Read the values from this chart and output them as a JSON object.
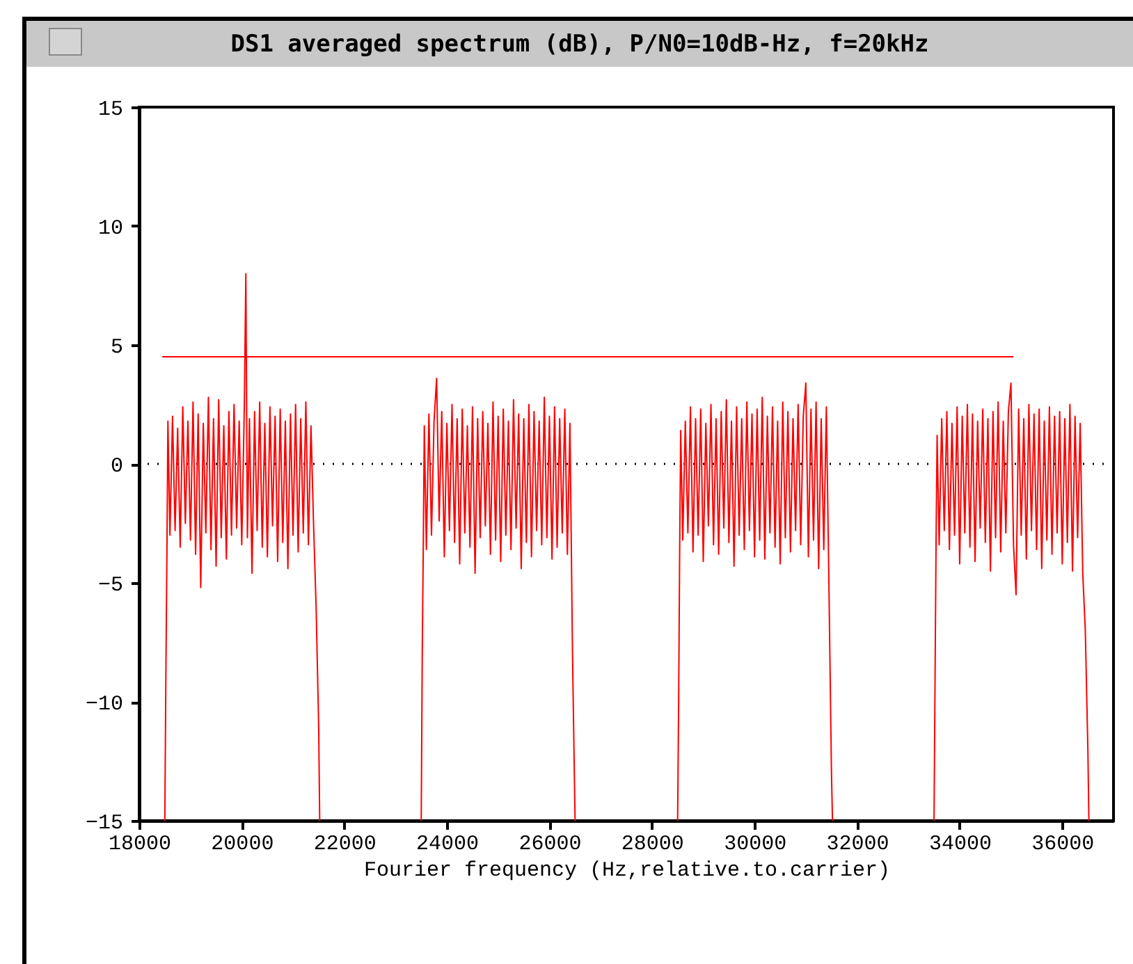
{
  "chart_data": {
    "type": "line",
    "title": "DS1 averaged spectrum (dB), P/N0=10dB-Hz, f=20kHz",
    "xlabel": "Fourier  frequency (Hz,relative.to.carrier)",
    "xlim": [
      18000,
      37000
    ],
    "xticks": [
      18000,
      20000,
      22000,
      24000,
      26000,
      28000,
      30000,
      32000,
      34000,
      36000
    ],
    "ylim": [
      -15,
      15
    ],
    "yticks": [
      -15,
      -10,
      -5,
      0,
      5,
      10,
      15
    ],
    "grid": false,
    "marker": "none",
    "line_style": "solid",
    "ref_lines": [
      {
        "axis": "y",
        "value": 0,
        "color": "#000000",
        "line_style": "dotted"
      }
    ],
    "series": [
      {
        "color": "#ff0000",
        "x": [
          18500,
          18520,
          18540,
          18560,
          18600,
          18650,
          18700,
          18750,
          18800,
          18850,
          18900,
          18950,
          19000,
          19050,
          19100,
          19150,
          19200,
          19250,
          19300,
          19350,
          19400,
          19450,
          19500,
          19550,
          19600,
          19650,
          19700,
          19750,
          19800,
          19850,
          19900,
          19950,
          20000,
          20050,
          20080,
          20110,
          20150,
          20200,
          20250,
          20300,
          20350,
          20400,
          20450,
          20500,
          20550,
          20600,
          20650,
          20700,
          20750,
          20800,
          20850,
          20900,
          20950,
          21000,
          21050,
          21100,
          21150,
          21200,
          21250,
          21300,
          21350,
          21400,
          21450,
          21500,
          21520
        ],
        "values": [
          -15,
          -9,
          -4,
          1.8,
          -3,
          2,
          -2.8,
          1.5,
          -3.5,
          2.4,
          -2.5,
          1.8,
          -3.2,
          2.6,
          -3.8,
          2.1,
          -5.2,
          1.7,
          -2.9,
          2.8,
          -3.6,
          1.9,
          -4.3,
          2.7,
          -3.1,
          1.6,
          -4,
          2.2,
          -3,
          2.5,
          -2.7,
          1.8,
          -3.4,
          2.4,
          8,
          -3.1,
          1.9,
          -4.6,
          2.2,
          -2.8,
          2.6,
          -3.5,
          1.7,
          -3.9,
          2.4,
          -2.6,
          2,
          -4.1,
          2.3,
          -3.3,
          1.8,
          -4.4,
          2.1,
          -3,
          2.5,
          -3.7,
          1.9,
          -2.9,
          2.6,
          -3.4,
          1.6,
          -2.5,
          -6,
          -11,
          -15
        ]
      },
      {
        "color": "#ff0000",
        "x": [
          23500,
          23520,
          23540,
          23560,
          23600,
          23650,
          23700,
          23750,
          23800,
          23850,
          23900,
          23950,
          24000,
          24050,
          24100,
          24150,
          24200,
          24250,
          24300,
          24350,
          24400,
          24450,
          24500,
          24550,
          24600,
          24650,
          24700,
          24750,
          24800,
          24850,
          24900,
          24950,
          25000,
          25050,
          25100,
          25150,
          25200,
          25250,
          25300,
          25350,
          25400,
          25450,
          25500,
          25550,
          25600,
          25650,
          25700,
          25750,
          25800,
          25850,
          25900,
          25950,
          26000,
          26050,
          26100,
          26150,
          26200,
          26250,
          26300,
          26350,
          26400,
          26450,
          26500,
          26520
        ],
        "values": [
          -15,
          -8,
          -3.5,
          1.6,
          -3.6,
          2.1,
          -3,
          1.8,
          3.6,
          -2.4,
          2.2,
          -3.9,
          1.7,
          -2.8,
          2.5,
          -3.3,
          1.9,
          -4.2,
          2.3,
          -2.9,
          1.6,
          -3.5,
          2.4,
          -4.6,
          1.9,
          -3.1,
          2.2,
          -2.6,
          1.7,
          -3.8,
          2.6,
          -3.2,
          2,
          -4.1,
          2.3,
          -3,
          1.8,
          -3.6,
          2.7,
          -2.7,
          2.1,
          -4.4,
          1.9,
          -3.3,
          2.5,
          -3.9,
          2.2,
          -2.8,
          1.8,
          -3.4,
          2.8,
          -3.1,
          2,
          -4,
          2.4,
          -3.5,
          1.9,
          -2.9,
          2.3,
          -3.8,
          1.7,
          -8,
          -15,
          -15
        ]
      },
      {
        "color": "#ff0000",
        "x": [
          28500,
          28520,
          28540,
          28560,
          28600,
          28650,
          28700,
          28750,
          28800,
          28850,
          28900,
          28950,
          29000,
          29050,
          29100,
          29150,
          29200,
          29250,
          29300,
          29350,
          29400,
          29450,
          29500,
          29550,
          29600,
          29650,
          29700,
          29750,
          29800,
          29850,
          29900,
          29950,
          30000,
          30050,
          30100,
          30150,
          30200,
          30250,
          30300,
          30350,
          30400,
          30450,
          30500,
          30550,
          30600,
          30650,
          30700,
          30750,
          30800,
          30850,
          30900,
          30950,
          31000,
          31050,
          31100,
          31150,
          31200,
          31250,
          31300,
          31350,
          31400,
          31450,
          31500,
          31520
        ],
        "values": [
          -15,
          -10,
          -3.5,
          1.4,
          -3.2,
          1.8,
          -2.9,
          2.4,
          -3.7,
          1.9,
          -3,
          2.3,
          -4.1,
          1.7,
          -2.6,
          2.5,
          -3.4,
          1.9,
          -3.8,
          2.2,
          -2.7,
          2.7,
          -3.3,
          1.8,
          -4.3,
          2.4,
          -3,
          1.9,
          -3.6,
          2.6,
          -2.8,
          2.1,
          -3.9,
          2.3,
          -3.2,
          2.8,
          -4,
          2,
          -2.9,
          2.4,
          -3.5,
          1.8,
          -4.2,
          2.6,
          -3.1,
          2.2,
          -3.7,
          1.9,
          -2.8,
          2.5,
          -3.4,
          2,
          3.4,
          -3.9,
          2.3,
          -3.2,
          2.6,
          -4.4,
          1.9,
          -3.6,
          2.4,
          -5,
          -13,
          -15
        ]
      },
      {
        "color": "#ff0000",
        "x": [
          33500,
          33520,
          33540,
          33560,
          33600,
          33650,
          33700,
          33750,
          33800,
          33850,
          33900,
          33950,
          34000,
          34050,
          34100,
          34150,
          34200,
          34250,
          34300,
          34350,
          34400,
          34450,
          34500,
          34550,
          34600,
          34650,
          34700,
          34750,
          34800,
          34850,
          34900,
          34950,
          35000,
          35050,
          35100,
          35150,
          35200,
          35250,
          35300,
          35350,
          35400,
          35450,
          35500,
          35550,
          35600,
          35650,
          35700,
          35750,
          35800,
          35850,
          35900,
          35950,
          36000,
          36050,
          36100,
          36150,
          36200,
          36250,
          36300,
          36350,
          36400,
          36450,
          36500,
          36520
        ],
        "values": [
          -15,
          -9,
          -3.2,
          1.2,
          -3.4,
          1.9,
          -2.8,
          2.2,
          -3.6,
          1.7,
          -3,
          2.4,
          -4.2,
          2,
          -2.9,
          2.5,
          -3.5,
          2.1,
          -4.1,
          1.8,
          -2.7,
          2.3,
          -3.3,
          1.9,
          -4.5,
          2.2,
          -3.1,
          2.6,
          -3.7,
          1.8,
          -2.9,
          2.2,
          3.4,
          -3.4,
          -5.5,
          2.3,
          -3,
          1.9,
          -4,
          2.5,
          -2.8,
          2.1,
          -3.6,
          2.3,
          -4.4,
          1.8,
          -3.2,
          2.4,
          -3.8,
          2,
          -2.9,
          2.2,
          -4.2,
          1.9,
          -3.3,
          2.5,
          -4.5,
          2,
          -3.1,
          1.7,
          -4.6,
          -7,
          -12,
          -15
        ]
      },
      {
        "color": "#ff0000",
        "x": [
          18450,
          35050
        ],
        "values": [
          4.5,
          4.5
        ]
      }
    ]
  }
}
